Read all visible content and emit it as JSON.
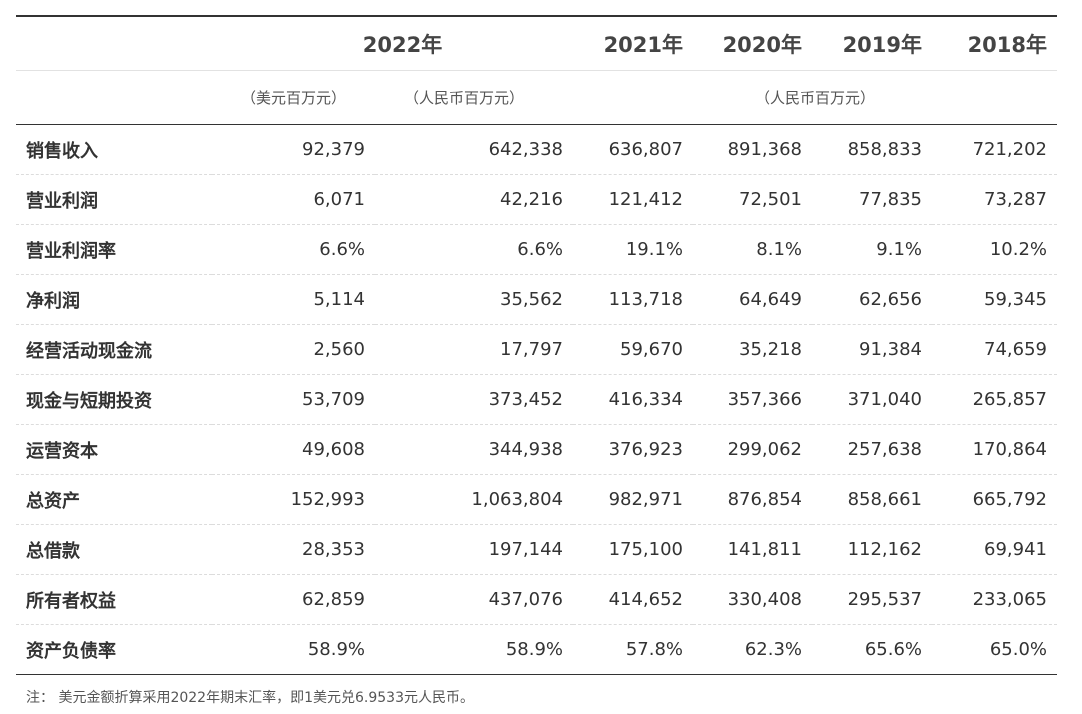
{
  "header": {
    "years": [
      "2022年",
      "2021年",
      "2020年",
      "2019年",
      "2018年"
    ],
    "unit_usd": "（美元百万元）",
    "unit_rmb_2022": "（人民币百万元）",
    "unit_rmb_prior": "（人民币百万元）"
  },
  "rows": [
    {
      "label": "销售收入",
      "values": [
        "92,379",
        "642,338",
        "636,807",
        "891,368",
        "858,833",
        "721,202"
      ]
    },
    {
      "label": "营业利润",
      "values": [
        "6,071",
        "42,216",
        "121,412",
        "72,501",
        "77,835",
        "73,287"
      ]
    },
    {
      "label": "营业利润率",
      "values": [
        "6.6%",
        "6.6%",
        "19.1%",
        "8.1%",
        "9.1%",
        "10.2%"
      ]
    },
    {
      "label": "净利润",
      "values": [
        "5,114",
        "35,562",
        "113,718",
        "64,649",
        "62,656",
        "59,345"
      ]
    },
    {
      "label": "经营活动现金流",
      "values": [
        "2,560",
        "17,797",
        "59,670",
        "35,218",
        "91,384",
        "74,659"
      ]
    },
    {
      "label": "现金与短期投资",
      "values": [
        "53,709",
        "373,452",
        "416,334",
        "357,366",
        "371,040",
        "265,857"
      ]
    },
    {
      "label": "运营资本",
      "values": [
        "49,608",
        "344,938",
        "376,923",
        "299,062",
        "257,638",
        "170,864"
      ]
    },
    {
      "label": "总资产",
      "values": [
        "152,993",
        "1,063,804",
        "982,971",
        "876,854",
        "858,661",
        "665,792"
      ]
    },
    {
      "label": "总借款",
      "values": [
        "28,353",
        "197,144",
        "175,100",
        "141,811",
        "112,162",
        "69,941"
      ]
    },
    {
      "label": "所有者权益",
      "values": [
        "62,859",
        "437,076",
        "414,652",
        "330,408",
        "295,537",
        "233,065"
      ]
    },
    {
      "label": "资产负债率",
      "values": [
        "58.9%",
        "58.9%",
        "57.8%",
        "62.3%",
        "65.6%",
        "65.0%"
      ]
    }
  ],
  "footnote": "注： 美元金额折算采用2022年期末汇率，即1美元兑6.9533元人民币。"
}
